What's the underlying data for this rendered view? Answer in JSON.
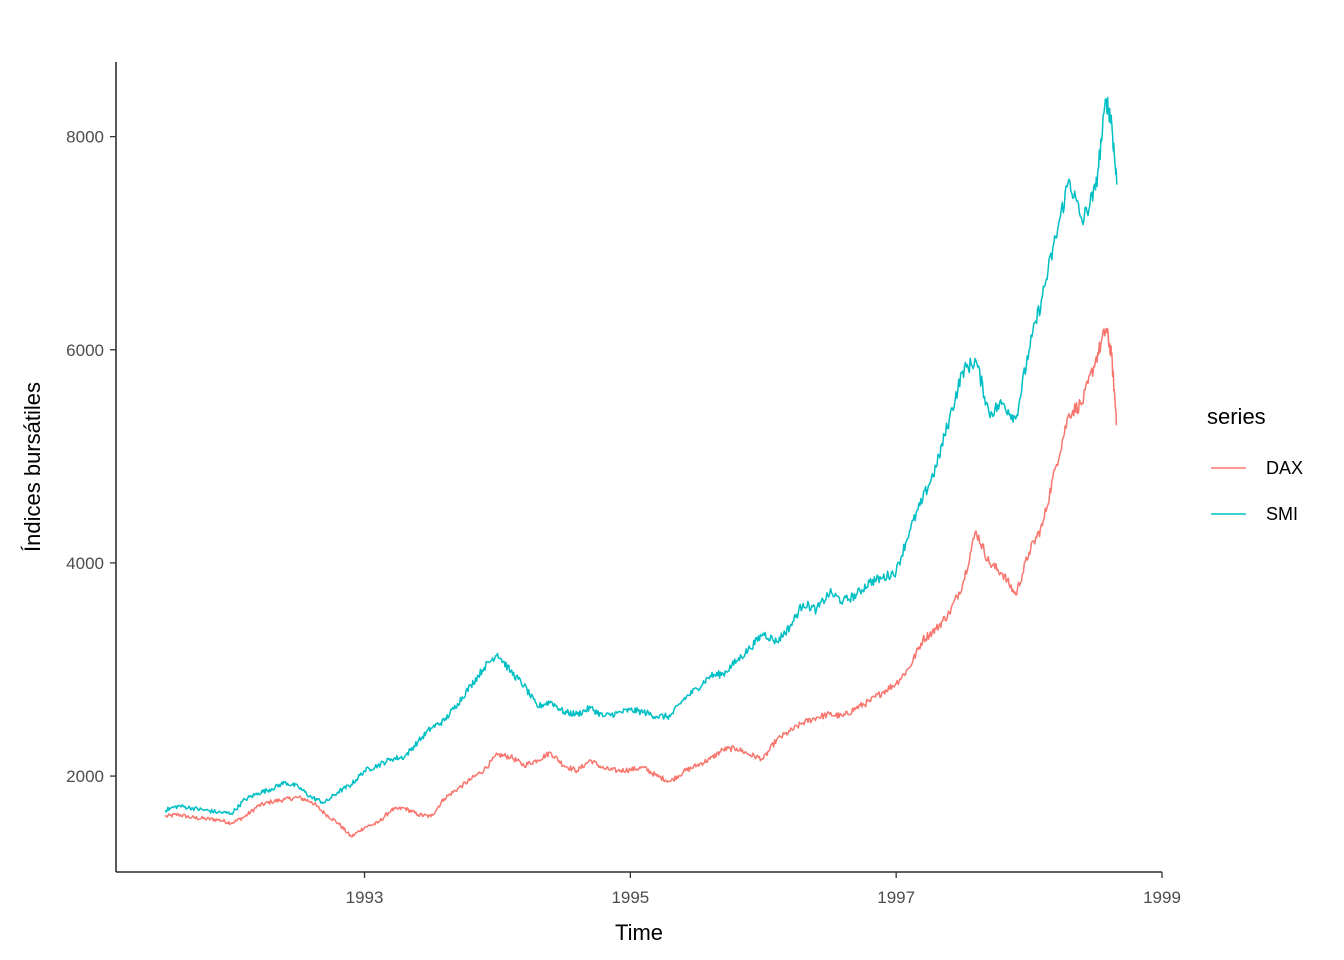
{
  "chart_data": {
    "type": "line",
    "xlabel": "Time",
    "ylabel": "Índices bursátiles",
    "xlim": [
      1991.13,
      1999.0
    ],
    "ylim": [
      1100,
      8700
    ],
    "x_ticks": [
      1993,
      1995,
      1997,
      1999
    ],
    "x_tick_labels": [
      "1993",
      "1995",
      "1997",
      "1999"
    ],
    "y_ticks": [
      2000,
      4000,
      6000,
      8000
    ],
    "y_tick_labels": [
      "2000",
      "4000",
      "6000",
      "8000"
    ],
    "grid": false,
    "legend": {
      "title": "series",
      "position": "right"
    },
    "series": [
      {
        "name": "DAX",
        "color": "#F8766D",
        "points": [
          [
            1991.5,
            1620
          ],
          [
            1991.6,
            1640
          ],
          [
            1991.7,
            1610
          ],
          [
            1991.8,
            1600
          ],
          [
            1991.9,
            1590
          ],
          [
            1992.0,
            1560
          ],
          [
            1992.1,
            1620
          ],
          [
            1992.2,
            1720
          ],
          [
            1992.3,
            1760
          ],
          [
            1992.4,
            1780
          ],
          [
            1992.5,
            1800
          ],
          [
            1992.6,
            1760
          ],
          [
            1992.7,
            1650
          ],
          [
            1992.8,
            1560
          ],
          [
            1992.9,
            1430
          ],
          [
            1993.0,
            1520
          ],
          [
            1993.1,
            1560
          ],
          [
            1993.2,
            1680
          ],
          [
            1993.3,
            1700
          ],
          [
            1993.4,
            1640
          ],
          [
            1993.5,
            1620
          ],
          [
            1993.6,
            1790
          ],
          [
            1993.7,
            1880
          ],
          [
            1993.8,
            1970
          ],
          [
            1993.9,
            2060
          ],
          [
            1994.0,
            2200
          ],
          [
            1994.1,
            2180
          ],
          [
            1994.2,
            2100
          ],
          [
            1994.3,
            2150
          ],
          [
            1994.4,
            2220
          ],
          [
            1994.5,
            2100
          ],
          [
            1994.6,
            2050
          ],
          [
            1994.7,
            2150
          ],
          [
            1994.8,
            2070
          ],
          [
            1994.9,
            2050
          ],
          [
            1995.0,
            2060
          ],
          [
            1995.1,
            2080
          ],
          [
            1995.2,
            2000
          ],
          [
            1995.3,
            1950
          ],
          [
            1995.4,
            2040
          ],
          [
            1995.5,
            2100
          ],
          [
            1995.6,
            2160
          ],
          [
            1995.7,
            2250
          ],
          [
            1995.8,
            2260
          ],
          [
            1995.9,
            2200
          ],
          [
            1996.0,
            2160
          ],
          [
            1996.1,
            2340
          ],
          [
            1996.2,
            2420
          ],
          [
            1996.3,
            2500
          ],
          [
            1996.4,
            2550
          ],
          [
            1996.5,
            2580
          ],
          [
            1996.6,
            2560
          ],
          [
            1996.7,
            2640
          ],
          [
            1996.8,
            2700
          ],
          [
            1996.9,
            2790
          ],
          [
            1997.0,
            2870
          ],
          [
            1997.1,
            3020
          ],
          [
            1997.2,
            3280
          ],
          [
            1997.3,
            3380
          ],
          [
            1997.4,
            3530
          ],
          [
            1997.5,
            3800
          ],
          [
            1997.6,
            4300
          ],
          [
            1997.7,
            4000
          ],
          [
            1997.8,
            3900
          ],
          [
            1997.9,
            3700
          ],
          [
            1998.0,
            4100
          ],
          [
            1998.1,
            4350
          ],
          [
            1998.2,
            4900
          ],
          [
            1998.3,
            5400
          ],
          [
            1998.4,
            5500
          ],
          [
            1998.5,
            5900
          ],
          [
            1998.58,
            6200
          ],
          [
            1998.62,
            5950
          ],
          [
            1998.66,
            5300
          ]
        ]
      },
      {
        "name": "SMI",
        "color": "#00BFC4",
        "points": [
          [
            1991.5,
            1680
          ],
          [
            1991.6,
            1720
          ],
          [
            1991.7,
            1700
          ],
          [
            1991.8,
            1680
          ],
          [
            1991.9,
            1660
          ],
          [
            1992.0,
            1650
          ],
          [
            1992.1,
            1780
          ],
          [
            1992.2,
            1840
          ],
          [
            1992.3,
            1880
          ],
          [
            1992.4,
            1940
          ],
          [
            1992.5,
            1900
          ],
          [
            1992.6,
            1800
          ],
          [
            1992.7,
            1750
          ],
          [
            1992.8,
            1850
          ],
          [
            1992.9,
            1920
          ],
          [
            1993.0,
            2050
          ],
          [
            1993.1,
            2100
          ],
          [
            1993.2,
            2160
          ],
          [
            1993.3,
            2180
          ],
          [
            1993.4,
            2320
          ],
          [
            1993.5,
            2450
          ],
          [
            1993.6,
            2520
          ],
          [
            1993.7,
            2680
          ],
          [
            1993.8,
            2850
          ],
          [
            1993.9,
            3020
          ],
          [
            1994.0,
            3150
          ],
          [
            1994.1,
            2980
          ],
          [
            1994.2,
            2850
          ],
          [
            1994.3,
            2650
          ],
          [
            1994.4,
            2700
          ],
          [
            1994.5,
            2600
          ],
          [
            1994.6,
            2580
          ],
          [
            1994.7,
            2640
          ],
          [
            1994.8,
            2560
          ],
          [
            1994.9,
            2590
          ],
          [
            1995.0,
            2620
          ],
          [
            1995.1,
            2600
          ],
          [
            1995.2,
            2560
          ],
          [
            1995.3,
            2560
          ],
          [
            1995.4,
            2720
          ],
          [
            1995.5,
            2820
          ],
          [
            1995.6,
            2940
          ],
          [
            1995.7,
            2960
          ],
          [
            1995.8,
            3080
          ],
          [
            1995.9,
            3200
          ],
          [
            1996.0,
            3340
          ],
          [
            1996.1,
            3260
          ],
          [
            1996.2,
            3400
          ],
          [
            1996.3,
            3620
          ],
          [
            1996.4,
            3560
          ],
          [
            1996.5,
            3720
          ],
          [
            1996.6,
            3640
          ],
          [
            1996.7,
            3700
          ],
          [
            1996.8,
            3820
          ],
          [
            1996.9,
            3860
          ],
          [
            1997.0,
            3920
          ],
          [
            1997.1,
            4300
          ],
          [
            1997.2,
            4600
          ],
          [
            1997.3,
            4900
          ],
          [
            1997.4,
            5350
          ],
          [
            1997.5,
            5800
          ],
          [
            1997.6,
            5900
          ],
          [
            1997.7,
            5400
          ],
          [
            1997.8,
            5500
          ],
          [
            1997.9,
            5350
          ],
          [
            1998.0,
            6000
          ],
          [
            1998.1,
            6500
          ],
          [
            1998.2,
            7050
          ],
          [
            1998.3,
            7600
          ],
          [
            1998.4,
            7200
          ],
          [
            1998.5,
            7500
          ],
          [
            1998.58,
            8350
          ],
          [
            1998.62,
            8150
          ],
          [
            1998.66,
            7550
          ]
        ]
      }
    ]
  }
}
